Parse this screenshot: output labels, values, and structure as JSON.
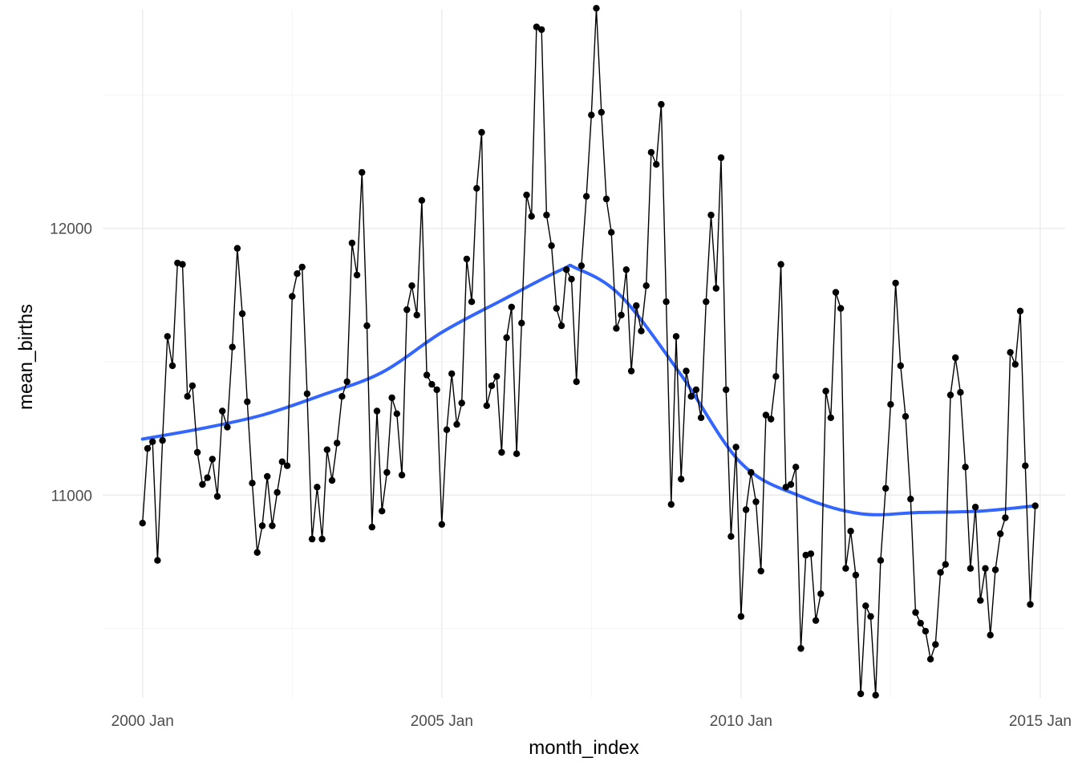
{
  "chart_data": {
    "type": "line",
    "xlabel": "month_index",
    "ylabel": "mean_births",
    "x_tick_labels": [
      "2000 Jan",
      "2005 Jan",
      "2010 Jan",
      "2015 Jan"
    ],
    "y_tick_labels": [
      "11000",
      "12000"
    ],
    "xlim": [
      "1999-05",
      "2015-06"
    ],
    "ylim": [
      10240,
      12820
    ],
    "grid": true,
    "theme": "minimal",
    "series": [
      {
        "type": "line-points",
        "color": "#000000",
        "x_start": "2000-01",
        "frequency": "monthly",
        "values": [
          10895,
          11175,
          11200,
          10755,
          11205,
          11595,
          11485,
          11870,
          11865,
          11370,
          11410,
          11160,
          11040,
          11065,
          11135,
          10995,
          11315,
          11255,
          11555,
          11925,
          11680,
          11350,
          11045,
          10785,
          10885,
          11070,
          10885,
          11010,
          11125,
          11110,
          11745,
          11830,
          11855,
          11380,
          10835,
          11030,
          10835,
          11170,
          11055,
          11195,
          11370,
          11425,
          11945,
          11825,
          12210,
          11635,
          10880,
          11315,
          10940,
          11085,
          11365,
          11305,
          11075,
          11695,
          11785,
          11675,
          12105,
          11450,
          11415,
          11395,
          10890,
          11245,
          11455,
          11265,
          11345,
          11885,
          11725,
          12150,
          12360,
          11335,
          11410,
          11445,
          11160,
          11590,
          11705,
          11155,
          11645,
          12125,
          12045,
          12755,
          12745,
          12050,
          11935,
          11700,
          11635,
          11845,
          11810,
          11425,
          11860,
          12120,
          12425,
          12825,
          12435,
          12110,
          11985,
          11625,
          11675,
          11845,
          11465,
          11710,
          11615,
          11785,
          12285,
          12240,
          12465,
          11725,
          10965,
          11595,
          11060,
          11465,
          11370,
          11395,
          11290,
          11725,
          12050,
          11775,
          12265,
          11395,
          10845,
          11180,
          10545,
          10945,
          11085,
          10975,
          10715,
          11300,
          11285,
          11445,
          11865,
          11030,
          11040,
          11105,
          10425,
          10775,
          10780,
          10530,
          10630,
          11390,
          11290,
          11760,
          11700,
          10725,
          10865,
          10700,
          10255,
          10585,
          10545,
          10250,
          10755,
          11025,
          11340,
          11795,
          11485,
          11295,
          10985,
          10560,
          10520,
          10490,
          10385,
          10440,
          10710,
          10740,
          11375,
          11515,
          11385,
          11105,
          10725,
          10955,
          10605,
          10725,
          10475,
          10720,
          10855,
          10915,
          11535,
          11490,
          11690,
          11110,
          10590,
          10960
        ]
      },
      {
        "type": "smooth",
        "color": "#3366ff",
        "x": [
          "2000-01",
          "2001-01",
          "2002-01",
          "2003-01",
          "2004-01",
          "2005-01",
          "2006-01",
          "2007-01",
          "2007-04",
          "2008-01",
          "2009-01",
          "2010-01",
          "2011-01",
          "2012-01",
          "2013-01",
          "2014-01",
          "2014-12"
        ],
        "values": [
          11210,
          11250,
          11300,
          11375,
          11460,
          11610,
          11730,
          11845,
          11850,
          11745,
          11450,
          11120,
          10995,
          10930,
          10935,
          10940,
          10960
        ]
      }
    ]
  }
}
